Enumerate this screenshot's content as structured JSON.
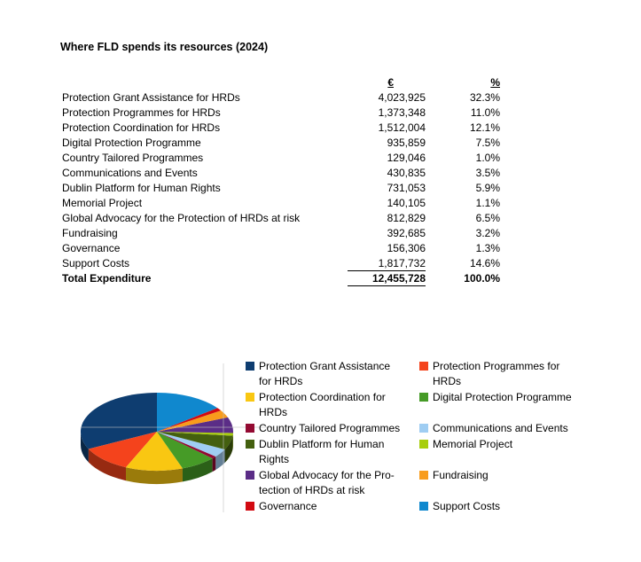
{
  "title": "Where FLD spends its resources (2024)",
  "table": {
    "headers": {
      "euro": "€",
      "pct": "%"
    },
    "rows": [
      {
        "label": "Protection Grant Assistance for HRDs",
        "euro": "4,023,925",
        "pct": "32.3%",
        "rule_below": false
      },
      {
        "label": "Protection Programmes for HRDs",
        "euro": "1,373,348",
        "pct": "11.0%",
        "rule_below": false
      },
      {
        "label": "Protection Coordination for HRDs",
        "euro": "1,512,004",
        "pct": "12.1%",
        "rule_below": false
      },
      {
        "label": "Digital Protection Programme",
        "euro": "935,859",
        "pct": "7.5%",
        "rule_below": false
      },
      {
        "label": "Country Tailored Programmes",
        "euro": "129,046",
        "pct": "1.0%",
        "rule_below": false
      },
      {
        "label": "Communications and Events",
        "euro": "430,835",
        "pct": "3.5%",
        "rule_below": false
      },
      {
        "label": "Dublin Platform for Human Rights",
        "euro": "731,053",
        "pct": "5.9%",
        "rule_below": false
      },
      {
        "label": "Memorial Project",
        "euro": "140,105",
        "pct": "1.1%",
        "rule_below": false
      },
      {
        "label": "Global Advocacy for the Protection of HRDs at risk",
        "euro": "812,829",
        "pct": "6.5%",
        "rule_below": false
      },
      {
        "label": "Fundraising",
        "euro": "392,685",
        "pct": "3.2%",
        "rule_below": false
      },
      {
        "label": "Governance",
        "euro": "156,306",
        "pct": "1.3%",
        "rule_below": false
      },
      {
        "label": "Support Costs",
        "euro": "1,817,732",
        "pct": "14.6%",
        "rule_below": true
      }
    ],
    "total": {
      "label": "Total Expenditure",
      "euro": "12,455,728",
      "pct": "100.0%"
    }
  },
  "chart_data": {
    "type": "pie",
    "style": "3d",
    "start_angle_deg": 0,
    "direction": "counterclockwise",
    "total": 12455728,
    "legend_position": "right",
    "legend_columns": 2,
    "gridlines": true,
    "gridline_color": "#BFBFBF",
    "series": [
      {
        "name": "Protection Grant Assistance for HRDs",
        "legend_label": "Protection Grant Assistance\nfor HRDs",
        "value": 4023925,
        "pct": 32.3,
        "color": "#0E3D70"
      },
      {
        "name": "Protection Programmes for HRDs",
        "legend_label": "Protection Programmes for\nHRDs",
        "value": 1373348,
        "pct": 11.0,
        "color": "#F4431C"
      },
      {
        "name": "Protection Coordination for HRDs",
        "legend_label": "Protection Coordination for\nHRDs",
        "value": 1512004,
        "pct": 12.1,
        "color": "#F9C712"
      },
      {
        "name": "Digital Protection Programme",
        "legend_label": "Digital Protection Programme",
        "value": 935859,
        "pct": 7.5,
        "color": "#469B27"
      },
      {
        "name": "Country Tailored Programmes",
        "legend_label": "Country Tailored Programmes",
        "value": 129046,
        "pct": 1.0,
        "color": "#930A32"
      },
      {
        "name": "Communications and Events",
        "legend_label": "Communications and Events",
        "value": 430835,
        "pct": 3.5,
        "color": "#9FCDF2"
      },
      {
        "name": "Dublin Platform for Human Rights",
        "legend_label": "Dublin Platform for Human\nRights",
        "value": 731053,
        "pct": 5.9,
        "color": "#44600F"
      },
      {
        "name": "Memorial Project",
        "legend_label": "Memorial Project",
        "value": 140105,
        "pct": 1.1,
        "color": "#A8CE0C"
      },
      {
        "name": "Global Advocacy for the Protection of HRDs at risk",
        "legend_label": "Global Advocacy for the Pro-\ntection of HRDs at risk",
        "value": 812829,
        "pct": 6.5,
        "color": "#5B2D87"
      },
      {
        "name": "Fundraising",
        "legend_label": "Fundraising",
        "value": 392685,
        "pct": 3.2,
        "color": "#F89C1C"
      },
      {
        "name": "Governance",
        "legend_label": "Governance",
        "value": 156306,
        "pct": 1.3,
        "color": "#D20A11"
      },
      {
        "name": "Support Costs",
        "legend_label": "Support Costs",
        "value": 1817732,
        "pct": 14.6,
        "color": "#1088CE"
      }
    ]
  }
}
